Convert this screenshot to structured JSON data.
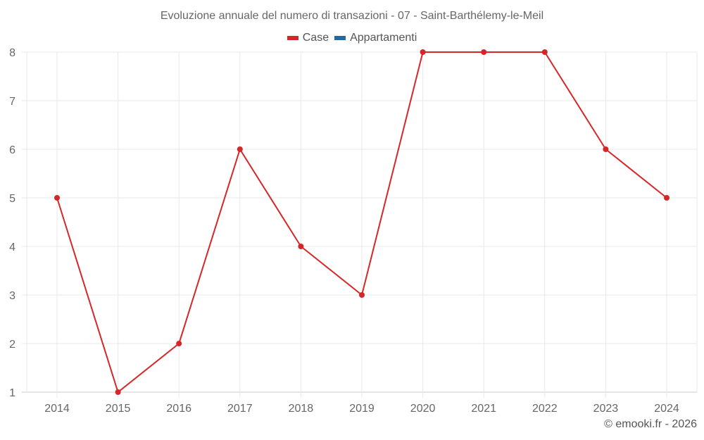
{
  "chart_data": {
    "type": "line",
    "title": "Evoluzione annuale del numero di transazioni - 07 - Saint-Barthélemy-le-Meil",
    "xlabel": "",
    "ylabel": "",
    "categories": [
      "2014",
      "2015",
      "2016",
      "2017",
      "2018",
      "2019",
      "2020",
      "2021",
      "2022",
      "2023",
      "2024"
    ],
    "series": [
      {
        "name": "Case",
        "color": "#d62728",
        "values": [
          5,
          1,
          2,
          6,
          4,
          3,
          8,
          8,
          8,
          6,
          5
        ]
      },
      {
        "name": "Appartamenti",
        "color": "#1f6aa5",
        "values": []
      }
    ],
    "ylim": [
      1,
      8
    ],
    "yticks": [
      1,
      2,
      3,
      4,
      5,
      6,
      7,
      8
    ],
    "grid": true,
    "legend_position": "top"
  },
  "legend": [
    {
      "label": "Case",
      "color": "#d62728"
    },
    {
      "label": "Appartamenti",
      "color": "#1f6aa5"
    }
  ],
  "credit": "© emooki.fr - 2026"
}
